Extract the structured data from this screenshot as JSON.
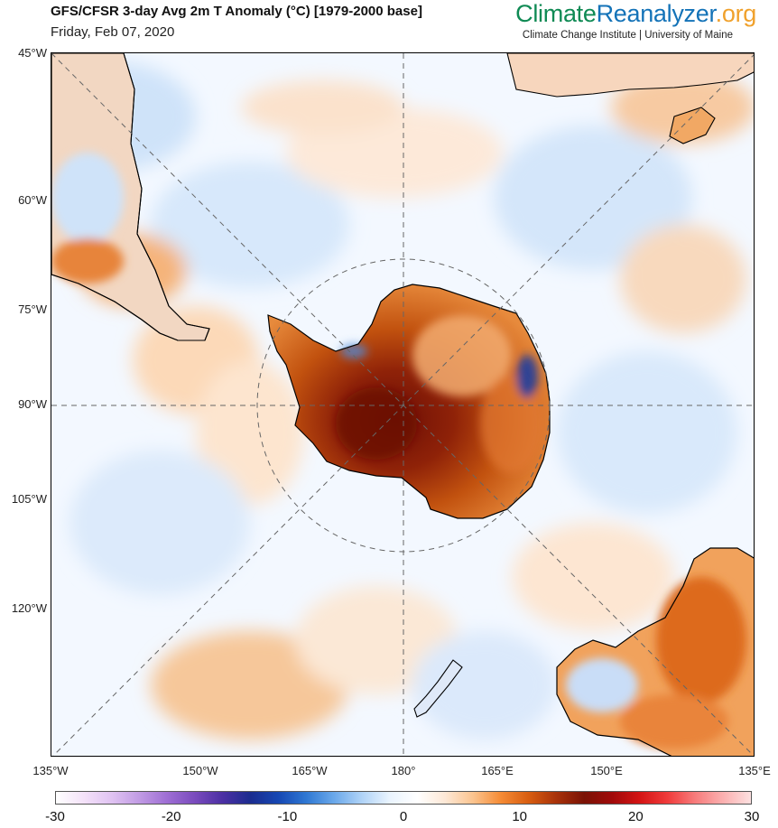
{
  "header": {
    "title": "GFS/CFSR 3-day Avg 2m T Anomaly (°C) [1979-2000 base]",
    "date": "Friday, Feb 07, 2020"
  },
  "brand": {
    "part1": "Climate",
    "part2": "Reanalyzer",
    "part3": ".org",
    "subtitle": "Climate Change Institute | University of Maine"
  },
  "map": {
    "left_labels": [
      "45°W",
      "60°W",
      "75°W",
      "90°W",
      "105°W",
      "120°W"
    ],
    "bottom_labels": [
      "135°W",
      "150°W",
      "165°W",
      "180°",
      "165°E",
      "150°E",
      "135°E"
    ]
  },
  "colorbar": {
    "ticks": [
      "-30",
      "-20",
      "-10",
      "0",
      "10",
      "20",
      "30"
    ],
    "min": -30,
    "max": 30,
    "colors": [
      "#ffffff",
      "#f4e2f9",
      "#e0c3f2",
      "#c19be4",
      "#9e6ed4",
      "#7a4bbd",
      "#4b2fa3",
      "#1b2c8f",
      "#1647b3",
      "#2f78d3",
      "#6aa8ea",
      "#b0d3f7",
      "#eaf4fe",
      "#ffffff",
      "#fde8d6",
      "#fbc48f",
      "#f58b35",
      "#d85d10",
      "#a8320a",
      "#7a1205",
      "#a00a0a",
      "#d41414",
      "#f03b3b",
      "#f77c7c",
      "#fbb0b0",
      "#fde0e0"
    ]
  }
}
